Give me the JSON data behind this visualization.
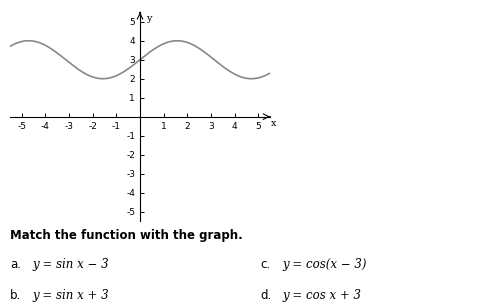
{
  "xlim": [
    -5.5,
    5.5
  ],
  "ylim": [
    -5.5,
    5.5
  ],
  "xticks": [
    -5,
    -4,
    -3,
    -2,
    -1,
    1,
    2,
    3,
    4,
    5
  ],
  "yticks": [
    -5,
    -4,
    -3,
    -2,
    -1,
    1,
    2,
    3,
    4,
    5
  ],
  "curve_color": "#888888",
  "curve_linewidth": 1.2,
  "background_color": "#ffffff",
  "label_text": "Match the function with the graph.",
  "options_left": [
    {
      "label": "a.",
      "text": "y = sin x − 3"
    },
    {
      "label": "b.",
      "text": "y = sin x + 3"
    }
  ],
  "options_right": [
    {
      "label": "c.",
      "text": "y = cos(x − 3)"
    },
    {
      "label": "d.",
      "text": "y = cos x + 3"
    }
  ],
  "label_fontsize": 8.5,
  "option_fontsize": 8.5,
  "tick_fontsize": 6.5,
  "xlabel": "x",
  "ylabel": "y"
}
